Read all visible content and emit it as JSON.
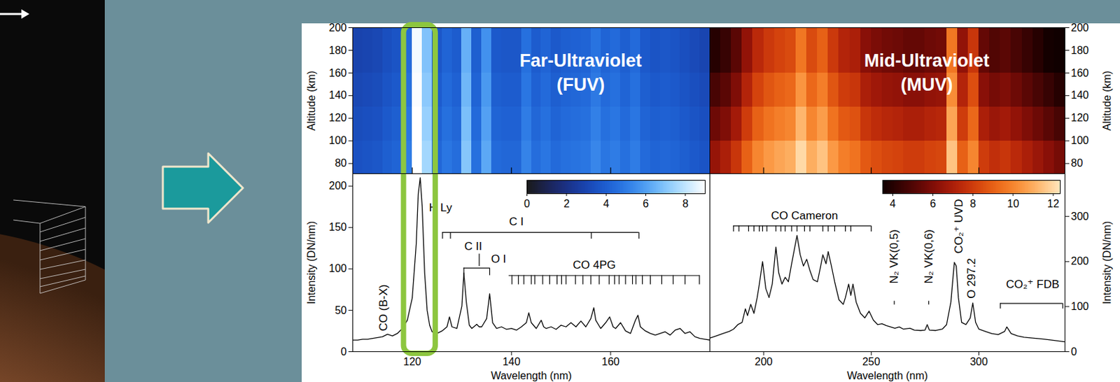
{
  "chart_data": [
    {
      "type": "heatmap",
      "title": "Far-Ultraviolet (FUV)",
      "ylabel": "Altitude (km)",
      "xlim": [
        108,
        180
      ],
      "xticks": [
        120,
        140,
        160
      ],
      "ylim": [
        71,
        200
      ],
      "yticks": [
        80,
        100,
        120,
        140,
        160,
        180,
        200
      ],
      "tick_labels": "y",
      "x_edges": [
        108,
        110,
        112,
        114,
        116,
        118,
        120,
        122,
        124,
        126,
        128,
        130,
        132,
        134,
        136,
        138,
        140,
        142,
        144,
        146,
        148,
        150,
        152,
        154,
        156,
        158,
        160,
        162,
        164,
        166,
        168,
        170,
        172,
        174,
        176,
        178,
        180
      ],
      "y_edges": [
        71,
        100,
        130,
        160,
        200
      ],
      "cells": [
        [
          3.5,
          3.6,
          3.7,
          4.0,
          4.2,
          5.0,
          9.0,
          7.5,
          4.3,
          4.8,
          4.5,
          7.0,
          4.6,
          6.2,
          4.4,
          4.3,
          4.3,
          5.2,
          4.5,
          4.8,
          4.4,
          4.6,
          4.7,
          4.8,
          5.3,
          4.8,
          5.0,
          4.6,
          5.0,
          4.4,
          4.2,
          4.3,
          4.2,
          4.0,
          3.8,
          3.6
        ],
        [
          3.3,
          3.4,
          3.5,
          3.8,
          4.0,
          4.8,
          9.0,
          7.3,
          4.1,
          4.6,
          4.3,
          6.8,
          4.4,
          6.0,
          4.2,
          4.1,
          4.1,
          5.0,
          4.3,
          4.6,
          4.2,
          4.4,
          4.5,
          4.6,
          5.1,
          4.6,
          4.8,
          4.4,
          4.8,
          4.2,
          4.0,
          4.1,
          4.0,
          3.8,
          3.6,
          3.4
        ],
        [
          3.1,
          3.2,
          3.3,
          3.6,
          3.8,
          4.6,
          8.9,
          7.1,
          3.9,
          4.4,
          4.1,
          6.6,
          4.2,
          5.8,
          4.0,
          3.9,
          3.9,
          4.8,
          4.1,
          4.4,
          4.0,
          4.2,
          4.3,
          4.4,
          4.9,
          4.4,
          4.6,
          4.2,
          4.6,
          4.0,
          3.8,
          3.9,
          3.8,
          3.6,
          3.4,
          3.2
        ],
        [
          2.9,
          3.0,
          3.1,
          3.4,
          3.6,
          4.4,
          8.8,
          6.9,
          3.7,
          4.2,
          3.9,
          6.4,
          4.0,
          5.6,
          3.8,
          3.7,
          3.7,
          4.6,
          3.9,
          4.2,
          3.8,
          4.0,
          4.1,
          4.2,
          4.7,
          4.2,
          4.4,
          4.0,
          4.4,
          3.8,
          3.6,
          3.7,
          3.6,
          3.4,
          3.2,
          3.0
        ]
      ],
      "colorbar": {
        "range": [
          0,
          9
        ],
        "ticks": [
          0,
          2,
          4,
          6,
          8
        ]
      }
    },
    {
      "type": "heatmap",
      "title": "Mid-Ultraviolet (MUV)",
      "ylabel": "Altitude (km)",
      "xlim": [
        175,
        340
      ],
      "xticks": [
        200,
        250,
        300
      ],
      "ylim": [
        71,
        200
      ],
      "yticks": [
        80,
        100,
        120,
        140,
        160,
        180,
        200
      ],
      "tick_labels": "y",
      "x_edges": [
        175,
        180,
        185,
        190,
        195,
        200,
        205,
        210,
        215,
        220,
        225,
        230,
        235,
        240,
        245,
        250,
        255,
        260,
        265,
        270,
        275,
        280,
        285,
        290,
        295,
        300,
        305,
        310,
        315,
        320,
        325,
        330,
        335,
        340
      ],
      "y_edges": [
        71,
        100,
        130,
        160,
        200
      ],
      "cells": [
        [
          6.5,
          7.0,
          7.8,
          9.0,
          10.0,
          10.5,
          10.8,
          11.0,
          12.0,
          11.0,
          11.5,
          10.5,
          9.8,
          9.5,
          8.8,
          8.5,
          8.3,
          8.2,
          8.0,
          8.0,
          8.2,
          8.3,
          11.5,
          9.0,
          10.0,
          8.0,
          7.6,
          7.8,
          7.4,
          7.0,
          6.6,
          6.2,
          5.8
        ],
        [
          5.6,
          6.0,
          6.8,
          8.0,
          9.0,
          9.5,
          9.8,
          10.0,
          11.2,
          10.0,
          10.6,
          9.5,
          8.8,
          8.6,
          7.8,
          7.5,
          7.3,
          7.2,
          7.0,
          7.0,
          7.2,
          7.3,
          10.8,
          8.0,
          9.2,
          7.0,
          6.6,
          6.8,
          6.4,
          6.0,
          5.6,
          5.2,
          4.8
        ],
        [
          4.8,
          5.2,
          6.0,
          7.2,
          8.2,
          8.7,
          9.0,
          9.2,
          10.4,
          9.2,
          9.8,
          8.7,
          8.0,
          7.8,
          7.0,
          6.7,
          6.5,
          6.4,
          6.2,
          6.2,
          6.4,
          6.5,
          10.2,
          7.2,
          8.5,
          6.2,
          5.8,
          6.0,
          5.6,
          5.2,
          4.8,
          4.4,
          4.0
        ],
        [
          4.0,
          4.4,
          5.2,
          6.4,
          7.4,
          7.9,
          8.2,
          8.4,
          9.6,
          8.4,
          9.0,
          7.9,
          7.2,
          7.0,
          6.2,
          5.9,
          5.7,
          5.6,
          5.4,
          5.4,
          5.6,
          5.7,
          9.6,
          6.4,
          7.8,
          5.4,
          5.0,
          5.2,
          4.8,
          4.4,
          4.0,
          3.6,
          3.5
        ]
      ],
      "colorbar": {
        "range": [
          3.5,
          12.35
        ],
        "ticks": [
          4,
          6,
          8,
          10,
          12
        ]
      }
    },
    {
      "type": "line",
      "xlabel": "Wavelength (nm)",
      "ylabel": "Intensity (DN/nm)",
      "xlim": [
        108,
        180
      ],
      "xticks": [
        120,
        140,
        160
      ],
      "ylim": [
        0,
        215
      ],
      "yticks": [
        0,
        50,
        100,
        150,
        200
      ],
      "color": "#000000",
      "x": [
        108,
        109,
        110,
        111,
        112,
        113,
        114,
        115,
        116,
        117,
        118,
        119,
        120,
        120.8,
        121.2,
        121.6,
        122,
        122.5,
        123,
        123.5,
        124,
        125,
        126,
        127,
        127.5,
        128,
        129,
        130,
        130.4,
        130.9,
        131.5,
        132,
        133,
        133.5,
        134,
        135,
        135.6,
        136.2,
        137,
        138,
        139,
        140,
        141,
        142,
        143,
        143.5,
        144,
        145,
        146,
        146.5,
        147,
        148,
        149,
        150,
        151,
        152,
        153,
        154,
        155,
        156,
        156.6,
        157,
        158,
        159,
        159.8,
        160.5,
        161,
        162,
        163,
        164,
        165,
        165.5,
        166,
        167,
        168,
        169,
        170,
        171,
        172,
        173,
        174,
        175,
        176,
        177,
        178,
        179,
        180
      ],
      "values": [
        14,
        14,
        15,
        15,
        16,
        17,
        18,
        21,
        19,
        22,
        28,
        38,
        65,
        130,
        190,
        210,
        175,
        95,
        50,
        32,
        24,
        22,
        25,
        30,
        42,
        30,
        28,
        55,
        95,
        60,
        32,
        28,
        33,
        30,
        30,
        40,
        70,
        35,
        28,
        30,
        27,
        28,
        26,
        30,
        35,
        47,
        35,
        28,
        38,
        30,
        28,
        30,
        27,
        32,
        30,
        35,
        30,
        37,
        30,
        40,
        53,
        38,
        28,
        35,
        42,
        30,
        28,
        35,
        25,
        22,
        38,
        44,
        30,
        25,
        22,
        20,
        22,
        24,
        20,
        26,
        28,
        22,
        24,
        18,
        16,
        15,
        14
      ],
      "highlight": {
        "x": [
          118.3,
          124.7
        ],
        "color": "#8dc63f"
      },
      "annotations": [
        {
          "text": "CO (B-X)",
          "x": 114.2,
          "y": 25,
          "vertical": true
        },
        {
          "text": "H Ly",
          "x": 125.7,
          "y": 174
        },
        {
          "text": "C I",
          "x": 141,
          "y": 157,
          "bracket": {
            "x1": 126.1,
            "x2": 165.7,
            "y": 144,
            "tick_end": 136,
            "ticks": [
              126.1,
              127.7,
              156.1,
              165.7
            ]
          }
        },
        {
          "text": "C II",
          "x": 132.3,
          "y": 127,
          "tick": {
            "x": 133.5,
            "y1": 103,
            "y2": 118
          }
        },
        {
          "text": "O I",
          "x": 137.4,
          "y": 112,
          "bracket": {
            "x1": 130.4,
            "x2": 135.6,
            "y": 101,
            "tick_end": 92,
            "ticks": [
              130.4,
              135.6
            ]
          }
        },
        {
          "text": "CO 4PG",
          "x": 156.7,
          "y": 105,
          "bracket": {
            "x1": 139.5,
            "x2": 178,
            "y": 92,
            "tick_end": 81,
            "ticks": [
              140.1,
              141.4,
              142.5,
              144.0,
              144.7,
              146.3,
              147.7,
              149.2,
              150.1,
              151.0,
              152.9,
              154.4,
              156.0,
              157.7,
              159.7,
              160.8,
              161.7,
              163.0,
              164.4,
              165.1,
              166.4,
              168.0,
              170.3,
              172.6,
              175.0,
              177.9
            ]
          }
        }
      ]
    },
    {
      "type": "line",
      "xlabel": "Wavelength (nm)",
      "ylabel": "Intensity (DN/nm)",
      "xlim": [
        175,
        340
      ],
      "xticks": [
        200,
        250,
        300
      ],
      "ylim": [
        0,
        395
      ],
      "yticks": [
        0,
        100,
        200,
        300
      ],
      "color": "#000000",
      "x": [
        175,
        178,
        181,
        184,
        186,
        188,
        190,
        191.5,
        192.5,
        194,
        195.5,
        197,
        198,
        199.5,
        201,
        202.5,
        204,
        205.7,
        207,
        208.5,
        210,
        211.5,
        213,
        215.5,
        217,
        218.5,
        220,
        221.5,
        223,
        225,
        226.5,
        227.5,
        229,
        230,
        231.5,
        233,
        235,
        237,
        238,
        239.5,
        240.5,
        241.5,
        243,
        245,
        247,
        249,
        251,
        253,
        255,
        257,
        259,
        261,
        263,
        265,
        268,
        270,
        273,
        275,
        276,
        277,
        280,
        283,
        285,
        287,
        288.6,
        289.5,
        290.5,
        292,
        294,
        296,
        297.2,
        298.5,
        300,
        303,
        306,
        309,
        312,
        313,
        315,
        318,
        321,
        325,
        330,
        335,
        340
      ],
      "values": [
        30,
        35,
        40,
        45,
        50,
        60,
        65,
        95,
        80,
        105,
        85,
        120,
        150,
        200,
        140,
        120,
        150,
        232,
        175,
        150,
        165,
        155,
        195,
        258,
        215,
        190,
        205,
        180,
        160,
        155,
        190,
        215,
        195,
        222,
        190,
        155,
        115,
        105,
        120,
        150,
        125,
        150,
        110,
        85,
        75,
        90,
        70,
        60,
        62,
        58,
        55,
        52,
        55,
        50,
        52,
        48,
        47,
        48,
        60,
        48,
        47,
        50,
        60,
        110,
        198,
        190,
        120,
        65,
        60,
        75,
        108,
        65,
        50,
        45,
        40,
        38,
        45,
        55,
        40,
        35,
        32,
        30,
        28,
        25,
        22
      ],
      "annotations": [
        {
          "text": "CO Cameron",
          "x": 219,
          "y": 301,
          "bracket": {
            "x1": 186,
            "x2": 250,
            "y": 279,
            "tick_end": 266,
            "ticks": [
              186,
              188.5,
              193,
              195.5,
              198,
              199.5,
              201.5,
              205.7,
              208,
              210,
              213,
              215.5,
              219,
              221.5,
              227.5,
              230,
              233,
              238,
              240.5,
              250
            ]
          }
        },
        {
          "text": "N₂ VK(0,5)",
          "x": 260.7,
          "y": 151,
          "vertical": true,
          "tick": {
            "x": 260.7,
            "y1": 104,
            "y2": 112
          }
        },
        {
          "text": "N₂ VK(0,6)",
          "x": 276.7,
          "y": 151,
          "vertical": true,
          "tick": {
            "x": 276.7,
            "y1": 104,
            "y2": 112
          }
        },
        {
          "text": "CO₂⁺ UVD",
          "x": 290.7,
          "y": 218,
          "vertical": true
        },
        {
          "text": "O 297.2",
          "x": 296.7,
          "y": 118,
          "vertical": true
        },
        {
          "text": "CO₂⁺ FDB",
          "x": 325,
          "y": 150,
          "bracket": {
            "x1": 310,
            "x2": 339,
            "y": 107,
            "tick_end": 95,
            "ticks": [
              310,
              339
            ]
          }
        }
      ]
    }
  ]
}
